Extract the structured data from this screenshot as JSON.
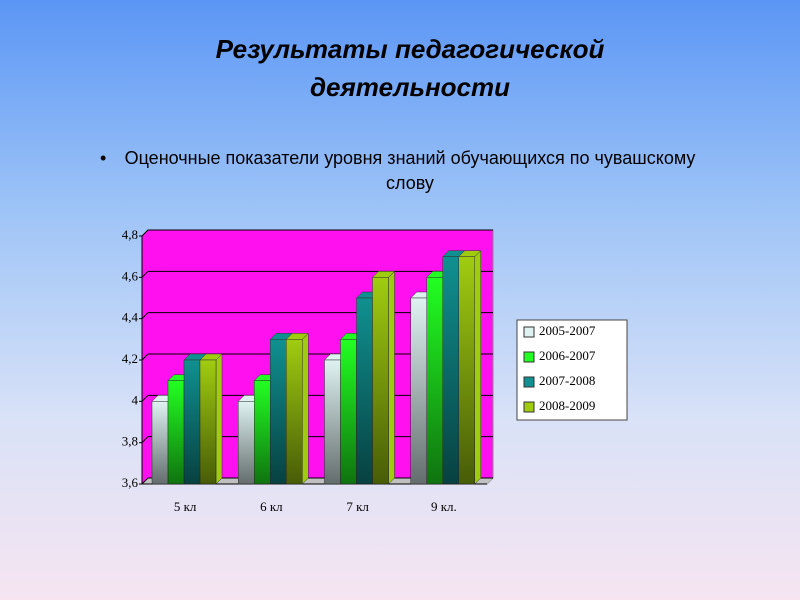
{
  "title": "Результаты педагогической деятельности",
  "bullet": "Оценочные показатели уровня знаний обучающихся по чувашскому слову",
  "chart_data": {
    "type": "bar",
    "categories": [
      "5 кл",
      "6 кл",
      "7 кл",
      "9 кл."
    ],
    "series": [
      {
        "name": "2005-2007",
        "color": "#dff2f2",
        "values": [
          4,
          4,
          4.2,
          4.5
        ]
      },
      {
        "name": "2006-2007",
        "color": "#22ff22",
        "values": [
          4.1,
          4.1,
          4.3,
          4.6
        ]
      },
      {
        "name": "2007-2008",
        "color": "#109090",
        "values": [
          4.2,
          4.3,
          4.5,
          4.7
        ]
      },
      {
        "name": "2008-2009",
        "color": "#a0cc10",
        "values": [
          4.2,
          4.3,
          4.6,
          4.7
        ]
      }
    ],
    "ylim": [
      3.6,
      4.8
    ],
    "yticks": [
      {
        "value": 3.6,
        "label": "3,6"
      },
      {
        "value": 3.8,
        "label": "3,8"
      },
      4,
      {
        "value": 4.2,
        "label": "4,2"
      },
      {
        "value": 4.4,
        "label": "4,4"
      },
      {
        "value": 4.6,
        "label": "4,6"
      },
      {
        "value": 4.8,
        "label": "4,8"
      }
    ],
    "grid": true,
    "legend": "right"
  }
}
